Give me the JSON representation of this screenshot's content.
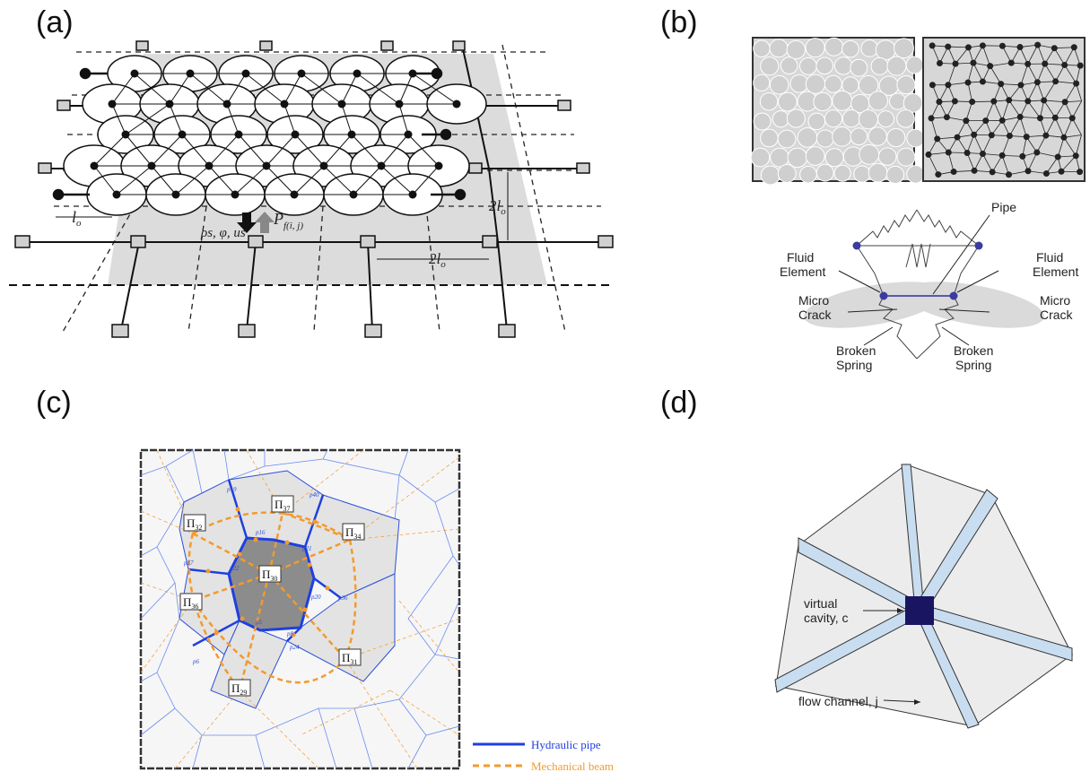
{
  "panels": {
    "a": {
      "label": "(a)",
      "annotations": {
        "lo_1": "l",
        "lo_1_sub": "o",
        "two_lo_right": "2l",
        "two_lo_right_sub": "o",
        "two_lo_bottom": "2l",
        "two_lo_bottom_sub": "o",
        "state_vars": "ρs, φ, us",
        "pressure": "P",
        "pressure_sub": "f(i, j)"
      }
    },
    "b": {
      "label": "(b)",
      "labels": {
        "pipe": "Pipe",
        "fluid_element_left_1": "Fluid",
        "fluid_element_left_2": "Element",
        "fluid_element_right_1": "Fluid",
        "fluid_element_right_2": "Element",
        "micro_crack_left_1": "Micro",
        "micro_crack_left_2": "Crack",
        "micro_crack_right_1": "Micro",
        "micro_crack_right_2": "Crack",
        "broken_spring_left_1": "Broken",
        "broken_spring_left_2": "Spring",
        "broken_spring_right_1": "Broken",
        "broken_spring_right_2": "Spring"
      }
    },
    "c": {
      "label": "(c)",
      "cells": [
        "Π32",
        "Π37",
        "Π34",
        "Π30",
        "Π36",
        "Π31",
        "Π29"
      ],
      "cell_labels": {
        "c32": "Π",
        "c32s": "32",
        "c37": "Π",
        "c37s": "37",
        "c34": "Π",
        "c34s": "34",
        "c30": "Π",
        "c30s": "30",
        "c36": "Π",
        "c36s": "36",
        "c31": "Π",
        "c31s": "31",
        "c29": "Π",
        "c29s": "29"
      },
      "pipe_labels": [
        "p19",
        "p40",
        "p16",
        "p21",
        "p17",
        "p22",
        "p36",
        "p20",
        "p5",
        "p8",
        "p24",
        "p6"
      ],
      "legend": {
        "hydraulic_pipe": "Hydraulic pipe",
        "mechanical_beam": "Mechanical beam"
      },
      "colors": {
        "hydraulic": "#1f3fe0",
        "mechanical": "#f39a2e",
        "center_cell": "#8c8c8c",
        "neighbor_cell": "#e3e3e3"
      }
    },
    "d": {
      "label": "(d)",
      "labels": {
        "virtual_cavity_1": "virtual",
        "virtual_cavity_2": "cavity, c",
        "flow_channel": "flow channel, j"
      },
      "colors": {
        "channel": "#c9ddf0",
        "cavity": "#1a1560",
        "triangle": "#ececec"
      }
    }
  }
}
